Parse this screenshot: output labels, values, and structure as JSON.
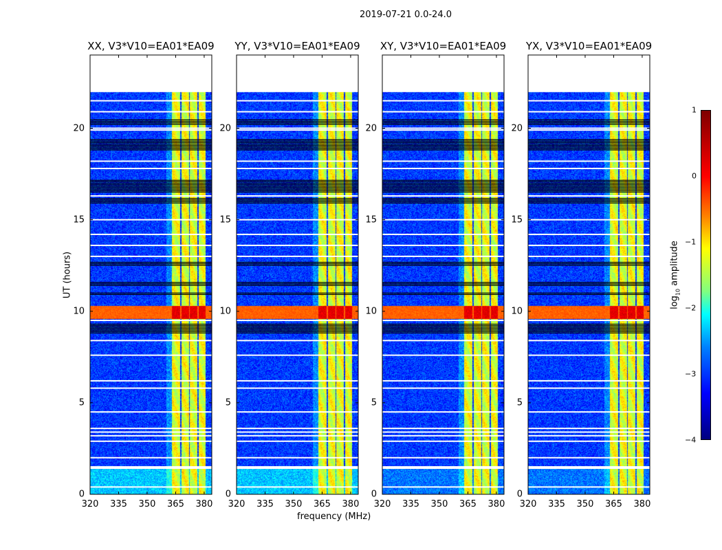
{
  "suptitle": "2019-07-21 0.0-24.0",
  "xlabel": "frequency (MHz)",
  "ylabel": "UT (hours)",
  "colorbar": {
    "label_prefix": "log",
    "label_sub": "10",
    "label_suffix": " amplitude",
    "ticks": [
      "1",
      "0",
      "−1",
      "−2",
      "−3",
      "−4"
    ],
    "range": [
      -4,
      1
    ],
    "colormap": "jet"
  },
  "chart_data": {
    "type": "heatmap",
    "xlim": [
      320,
      384
    ],
    "ylim": [
      0,
      24
    ],
    "xticks": [
      "320",
      "335",
      "350",
      "365",
      "380"
    ],
    "xtick_values": [
      320,
      335,
      350,
      365,
      380
    ],
    "yticks": [
      "0",
      "5",
      "10",
      "15",
      "20"
    ],
    "ytick_values": [
      0,
      5,
      10,
      15,
      20
    ],
    "data_hours": [
      0,
      22
    ],
    "background_log_amp": -3.1,
    "band_columns_mhz": [
      [
        363,
        367.3
      ],
      [
        367.8,
        371.8
      ],
      [
        372.3,
        376.3
      ],
      [
        376.8,
        380.5
      ]
    ],
    "band_log_amp": -1.0,
    "flagged_white_hours": [
      0.4,
      1.5,
      2.0,
      2.9,
      3.2,
      3.4,
      3.6,
      4.5,
      5.8,
      6.2,
      7.6,
      8.4,
      9.5,
      13.0,
      13.6,
      14.2,
      15.0,
      16.3,
      17.8,
      18.2,
      19.9,
      20.0,
      20.9,
      21.5
    ],
    "bad_black_ranges": [
      [
        8.8,
        9.3
      ],
      [
        10.9,
        11.0
      ],
      [
        11.4,
        11.6
      ],
      [
        12.5,
        12.7
      ],
      [
        15.9,
        16.2
      ],
      [
        16.5,
        17.2
      ],
      [
        18.8,
        19.4
      ],
      [
        20.2,
        20.5
      ]
    ],
    "rfi_event": {
      "hours": [
        9.6,
        10.3
      ],
      "log_amp": 0.5
    },
    "panels": [
      {
        "title": "XX, V3*V10=EA01*EA09",
        "low_band_offset": 0.4
      },
      {
        "title": "YY, V3*V10=EA01*EA09",
        "low_band_offset": 0.4
      },
      {
        "title": "XY, V3*V10=EA01*EA09",
        "low_band_offset": 0.0
      },
      {
        "title": "YX, V3*V10=EA01*EA09",
        "low_band_offset": 0.0
      }
    ]
  }
}
